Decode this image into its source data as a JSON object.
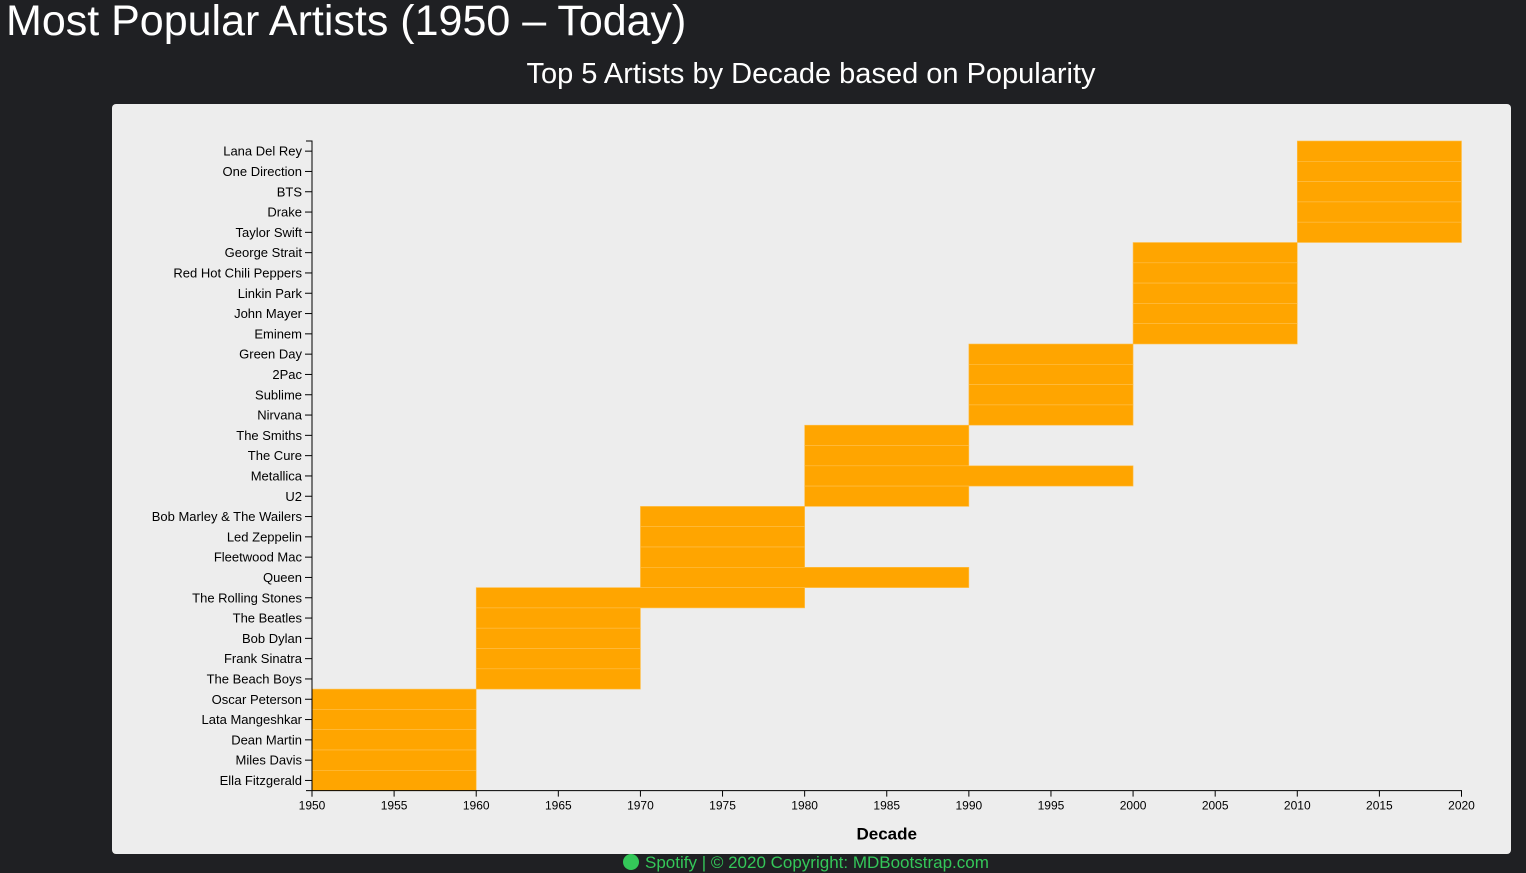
{
  "page": {
    "title": "Most Popular Artists (1950 – Today)",
    "footer_text": "Spotify | © 2020 Copyright: MDBootstrap.com"
  },
  "chart_data": {
    "type": "bar",
    "orientation": "horizontal-range",
    "title": "Top 5 Artists by Decade based on Popularity",
    "xlabel": "Decade",
    "ylabel": "",
    "xlim": [
      1950,
      2020
    ],
    "x_ticks": [
      1950,
      1955,
      1960,
      1965,
      1970,
      1975,
      1980,
      1985,
      1990,
      1995,
      2000,
      2005,
      2010,
      2015,
      2020
    ],
    "bar_color": "#ffa500",
    "artists": [
      {
        "name": "Lana Del Rey",
        "start": 2010,
        "end": 2020
      },
      {
        "name": "One Direction",
        "start": 2010,
        "end": 2020
      },
      {
        "name": "BTS",
        "start": 2010,
        "end": 2020
      },
      {
        "name": "Drake",
        "start": 2010,
        "end": 2020
      },
      {
        "name": "Taylor Swift",
        "start": 2010,
        "end": 2020
      },
      {
        "name": "George Strait",
        "start": 2000,
        "end": 2010
      },
      {
        "name": "Red Hot Chili Peppers",
        "start": 2000,
        "end": 2010
      },
      {
        "name": "Linkin Park",
        "start": 2000,
        "end": 2010
      },
      {
        "name": "John Mayer",
        "start": 2000,
        "end": 2010
      },
      {
        "name": "Eminem",
        "start": 2000,
        "end": 2010
      },
      {
        "name": "Green Day",
        "start": 1990,
        "end": 2000
      },
      {
        "name": "2Pac",
        "start": 1990,
        "end": 2000
      },
      {
        "name": "Sublime",
        "start": 1990,
        "end": 2000
      },
      {
        "name": "Nirvana",
        "start": 1990,
        "end": 2000
      },
      {
        "name": "The Smiths",
        "start": 1980,
        "end": 1990
      },
      {
        "name": "The Cure",
        "start": 1980,
        "end": 1990
      },
      {
        "name": "Metallica",
        "start": 1980,
        "end": 2000
      },
      {
        "name": "U2",
        "start": 1980,
        "end": 1990
      },
      {
        "name": "Bob Marley & The Wailers",
        "start": 1970,
        "end": 1980
      },
      {
        "name": "Led Zeppelin",
        "start": 1970,
        "end": 1980
      },
      {
        "name": "Fleetwood Mac",
        "start": 1970,
        "end": 1980
      },
      {
        "name": "Queen",
        "start": 1970,
        "end": 1990
      },
      {
        "name": "The Rolling Stones",
        "start": 1960,
        "end": 1980
      },
      {
        "name": "The Beatles",
        "start": 1960,
        "end": 1970
      },
      {
        "name": "Bob Dylan",
        "start": 1960,
        "end": 1970
      },
      {
        "name": "Frank Sinatra",
        "start": 1960,
        "end": 1970
      },
      {
        "name": "The Beach Boys",
        "start": 1960,
        "end": 1970
      },
      {
        "name": "Oscar Peterson",
        "start": 1950,
        "end": 1960
      },
      {
        "name": "Lata Mangeshkar",
        "start": 1950,
        "end": 1960
      },
      {
        "name": "Dean Martin",
        "start": 1950,
        "end": 1960
      },
      {
        "name": "Miles Davis",
        "start": 1950,
        "end": 1960
      },
      {
        "name": "Ella Fitzgerald",
        "start": 1950,
        "end": 1960
      }
    ]
  }
}
